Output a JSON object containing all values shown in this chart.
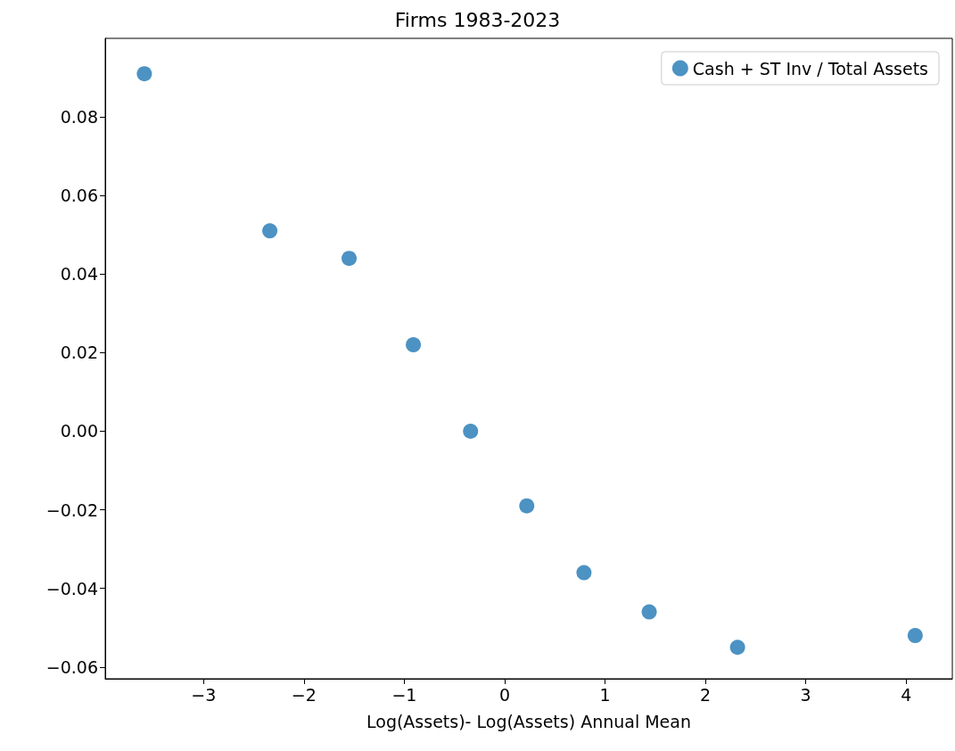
{
  "chart_data": {
    "type": "scatter",
    "title": "Firms 1983-2023",
    "xlabel": "Log(Assets)- Log(Assets) Annual Mean",
    "x": [
      -3.59,
      -2.34,
      -1.55,
      -0.91,
      -0.34,
      0.22,
      0.79,
      1.44,
      2.32,
      4.09
    ],
    "series": [
      {
        "name": "Cash + ST Inv / Total Assets",
        "color": "#1f77b4",
        "values": [
          0.091,
          0.051,
          0.044,
          0.022,
          0.0,
          -0.019,
          -0.036,
          -0.046,
          -0.055,
          -0.052
        ]
      }
    ],
    "xlim": [
      -3.98,
      4.46
    ],
    "xticks": [
      {
        "value": -3,
        "label": "−3"
      },
      {
        "value": -2,
        "label": "−2"
      },
      {
        "value": -1,
        "label": "−1"
      },
      0,
      1,
      2,
      3,
      4
    ],
    "ylim": [
      -0.063,
      0.1
    ],
    "yticks": [
      {
        "value": -0.06,
        "label": "−0.06"
      },
      {
        "value": -0.04,
        "label": "−0.04"
      },
      {
        "value": -0.02,
        "label": "−0.02"
      },
      {
        "value": 0,
        "label": "0.00"
      },
      {
        "value": 0.02,
        "label": "0.02"
      },
      {
        "value": 0.04,
        "label": "0.04"
      },
      {
        "value": 0.06,
        "label": "0.06"
      },
      {
        "value": 0.08,
        "label": "0.08"
      }
    ],
    "grid": false,
    "legend": "top right",
    "marker": "circle"
  }
}
